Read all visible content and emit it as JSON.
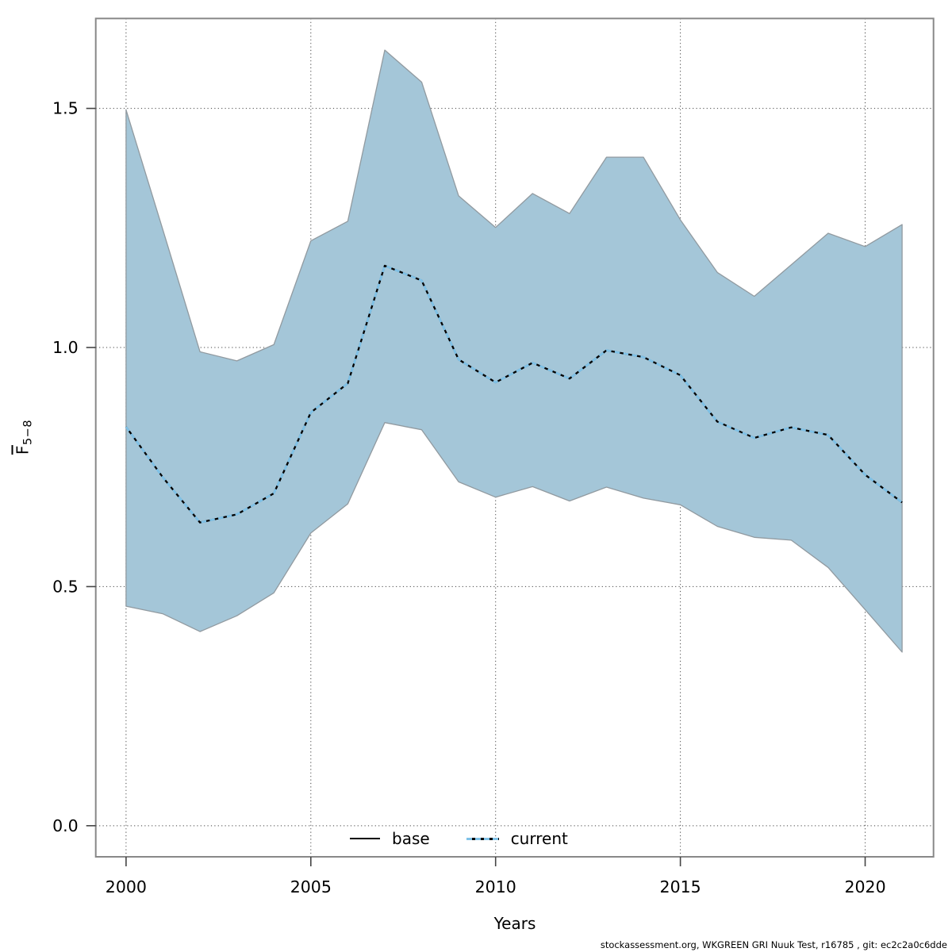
{
  "figure": {
    "x_label": "Years",
    "y_label_main": "F",
    "y_label_sub": "5−8",
    "footer": "stockassessment.org, WKGREEN GRI Nuuk Test, r16785 , git: ec2c2a0c6dde"
  },
  "legend": {
    "base_label": "base",
    "current_label": "current"
  },
  "chart_data": {
    "type": "line",
    "title": "",
    "xlabel": "Years",
    "ylabel": "Fbar 5-8",
    "grid": true,
    "legend_position": "bottom-center-inside",
    "xlim": [
      1999.18,
      2021.85
    ],
    "ylim": [
      -0.065,
      1.688
    ],
    "xticks": [
      2000,
      2005,
      2010,
      2015,
      2020
    ],
    "xtick_labels": [
      "2000",
      "2005",
      "2010",
      "2015",
      "2020"
    ],
    "yticks": [
      0.0,
      0.5,
      1.0,
      1.5
    ],
    "ytick_labels": [
      "0.0",
      "0.5",
      "1.0",
      "1.5"
    ],
    "x": [
      2000,
      2001,
      2002,
      2003,
      2004,
      2005,
      2006,
      2007,
      2008,
      2009,
      2010,
      2011,
      2012,
      2013,
      2014,
      2015,
      2016,
      2017,
      2018,
      2019,
      2020,
      2021
    ],
    "series": [
      {
        "name": "current",
        "values": [
          0.834,
          0.728,
          0.634,
          0.651,
          0.695,
          0.864,
          0.925,
          1.171,
          1.14,
          0.975,
          0.927,
          0.968,
          0.935,
          0.994,
          0.98,
          0.942,
          0.845,
          0.811,
          0.833,
          0.817,
          0.734,
          0.676
        ]
      },
      {
        "name": "current_ci_upper",
        "values": [
          1.497,
          1.245,
          0.991,
          0.972,
          1.006,
          1.223,
          1.264,
          1.622,
          1.555,
          1.317,
          1.251,
          1.322,
          1.28,
          1.398,
          1.398,
          1.267,
          1.157,
          1.107,
          1.173,
          1.239,
          1.211,
          1.257
        ]
      },
      {
        "name": "current_ci_lower",
        "values": [
          0.459,
          0.443,
          0.406,
          0.439,
          0.487,
          0.612,
          0.673,
          0.843,
          0.828,
          0.719,
          0.687,
          0.709,
          0.679,
          0.708,
          0.685,
          0.671,
          0.626,
          0.603,
          0.597,
          0.54,
          0.452,
          0.363
        ]
      }
    ],
    "colors": {
      "ribbon_fill": "#a4c6d8",
      "ribbon_edge": "#919aa0",
      "base_line": "#000000",
      "current_dash": "#7fc2e8",
      "grid": "#444444",
      "box": "#888888",
      "tick": "#444444"
    }
  }
}
